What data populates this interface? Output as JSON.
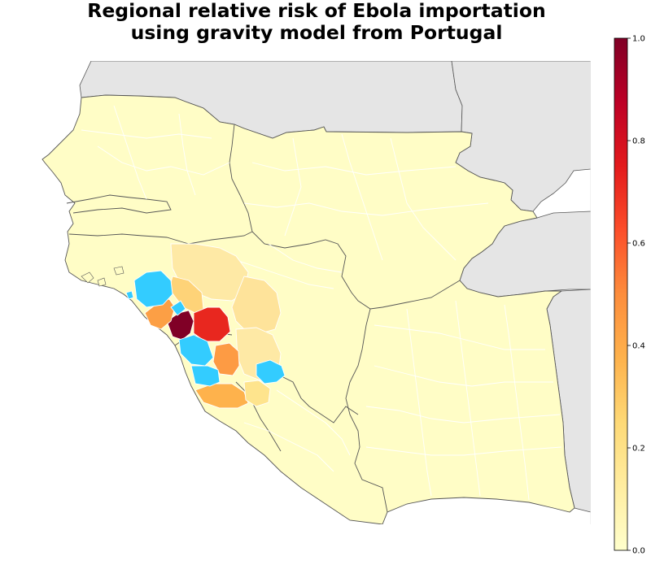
{
  "title": {
    "line1": "Regional relative risk of Ebola importation",
    "line2": "using gravity model from Portugal"
  },
  "colorbar": {
    "ticks": [
      "0.0",
      "0.2",
      "0.4",
      "0.6",
      "0.8",
      "1.0"
    ],
    "tick_values": [
      0.0,
      0.2,
      0.4,
      0.6,
      0.8,
      1.0
    ],
    "colormap": "YlOrRd",
    "stops": [
      "#ffffcc",
      "#ffeda0",
      "#fed976",
      "#feb24c",
      "#fd8d3c",
      "#fc4e2a",
      "#e31a1c",
      "#bd0026",
      "#800026"
    ]
  },
  "map": {
    "ocean_color": "#ffffff",
    "outside_land_color": "#e5e5e5",
    "base_region_color": "#fffdc6",
    "boundary_color": "#ffffff",
    "country_border_color": "#555555",
    "excluded_region_color": "#33ccff"
  },
  "chart_data": {
    "type": "choropleth",
    "title": "Regional relative risk of Ebola importation using gravity model from Portugal",
    "colorbar_range": [
      0.0,
      1.0
    ],
    "countries_shown": [
      "Senegal",
      "Gambia",
      "Guinea-Bissau",
      "Guinea",
      "Sierra Leone",
      "Liberia",
      "Mali",
      "Côte d'Ivoire"
    ],
    "highlighted_regions": [
      {
        "id": "region-a",
        "value": 1.0
      },
      {
        "id": "region-b",
        "value": 0.88
      },
      {
        "id": "region-c",
        "value": 0.52
      },
      {
        "id": "region-d",
        "value": 0.5
      },
      {
        "id": "region-e",
        "value": 0.4
      },
      {
        "id": "region-f",
        "value": 0.3
      },
      {
        "id": "region-g",
        "value": 0.28
      },
      {
        "id": "region-h",
        "value": 0.25
      },
      {
        "id": "region-i",
        "value": 0.2
      },
      {
        "id": "region-j",
        "value": 0.15
      }
    ],
    "excluded_regions_color": "cyan (source regions, no value)"
  }
}
